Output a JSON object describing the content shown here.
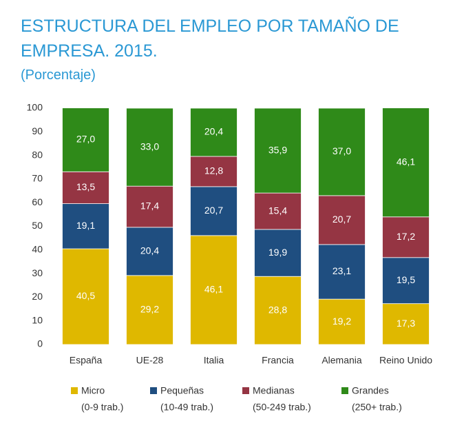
{
  "chart_data": {
    "type": "stacked_bar",
    "title": "ESTRUCTURA DEL EMPLEO POR TAMAÑO DE EMPRESA. 2015.",
    "subtitle": "(Porcentaje)",
    "categories": [
      "España",
      "UE-28",
      "Italia",
      "Francia",
      "Alemania",
      "Reino Unido"
    ],
    "series": [
      {
        "name": "Micro",
        "legend_sublabel": "(0-9 trab.)",
        "color": "#dfb800",
        "values": [
          40.5,
          29.2,
          46.1,
          28.8,
          19.2,
          17.3
        ],
        "value_labels": [
          "40,5",
          "29,2",
          "46,1",
          "28,8",
          "19,2",
          "17,3"
        ]
      },
      {
        "name": "Pequeñas",
        "legend_sublabel": "(10-49 trab.)",
        "color": "#1f4e80",
        "values": [
          19.1,
          20.4,
          20.7,
          19.9,
          23.1,
          19.5
        ],
        "value_labels": [
          "19,1",
          "20,4",
          "20,7",
          "19,9",
          "23,1",
          "19,5"
        ]
      },
      {
        "name": "Medianas",
        "legend_sublabel": "(50-249 trab.)",
        "color": "#953543",
        "values": [
          13.5,
          17.4,
          12.8,
          15.4,
          20.7,
          17.2
        ],
        "value_labels": [
          "13,5",
          "17,4",
          "12,8",
          "15,4",
          "20,7",
          "17,2"
        ]
      },
      {
        "name": "Grandes",
        "legend_sublabel": "(250+ trab.)",
        "color": "#2f8a19",
        "values": [
          27.0,
          33.0,
          20.4,
          35.9,
          37.0,
          46.1
        ],
        "value_labels": [
          "27,0",
          "33,0",
          "20,4",
          "35,9",
          "37,0",
          "46,1"
        ]
      }
    ],
    "ylim": [
      0,
      100
    ],
    "yticks": [
      0,
      10,
      20,
      30,
      40,
      50,
      60,
      70,
      80,
      90,
      100
    ],
    "grid": false,
    "legend": "bottom"
  }
}
